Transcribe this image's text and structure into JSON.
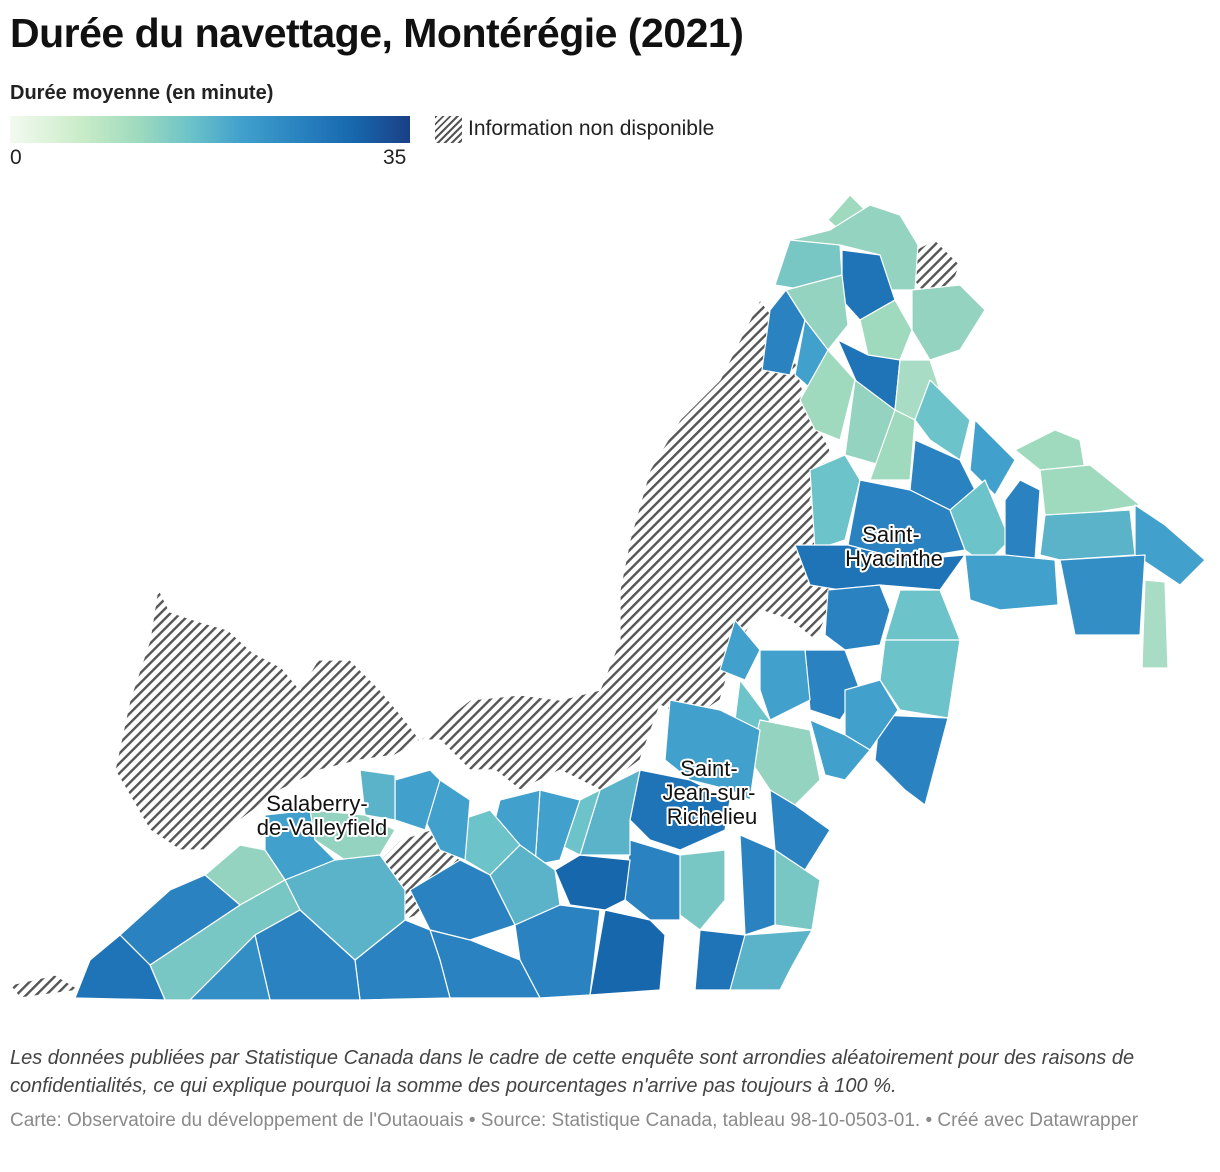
{
  "title": "Durée du navettage, Montérégie (2021)",
  "legend": {
    "title": "Durée moyenne (en minute)",
    "min_label": "0",
    "max_label": "35",
    "na_label": "Information non disponible",
    "colors": [
      "#f3faf0",
      "#c9ecc8",
      "#9fdabe",
      "#6cc3c9",
      "#41a0cc",
      "#2a83c0",
      "#1767ad",
      "#1b3f86"
    ]
  },
  "map": {
    "region": "Montérégie",
    "na_pattern_color": "#555555",
    "city_labels": [
      {
        "lines": [
          "Saint-",
          "Hyacinthe"
        ]
      },
      {
        "lines": [
          "Saint-",
          "Jean-sur-",
          "Richelieu"
        ]
      },
      {
        "lines": [
          "Salaberry-",
          "de-Valleyfield"
        ]
      }
    ]
  },
  "note": "Les données publiées par Statistique Canada dans le cadre de cette enquête sont arrondies aléatoirement pour des raisons de confidentialités, ce qui explique pourquoi la somme des pourcentages n'arrive pas toujours à 100 %.",
  "credit": "Carte: Observatoire du développement de l'Outaouais • Source: Statistique Canada, tableau 98-10-0503-01. • Créé avec Datawrapper"
}
